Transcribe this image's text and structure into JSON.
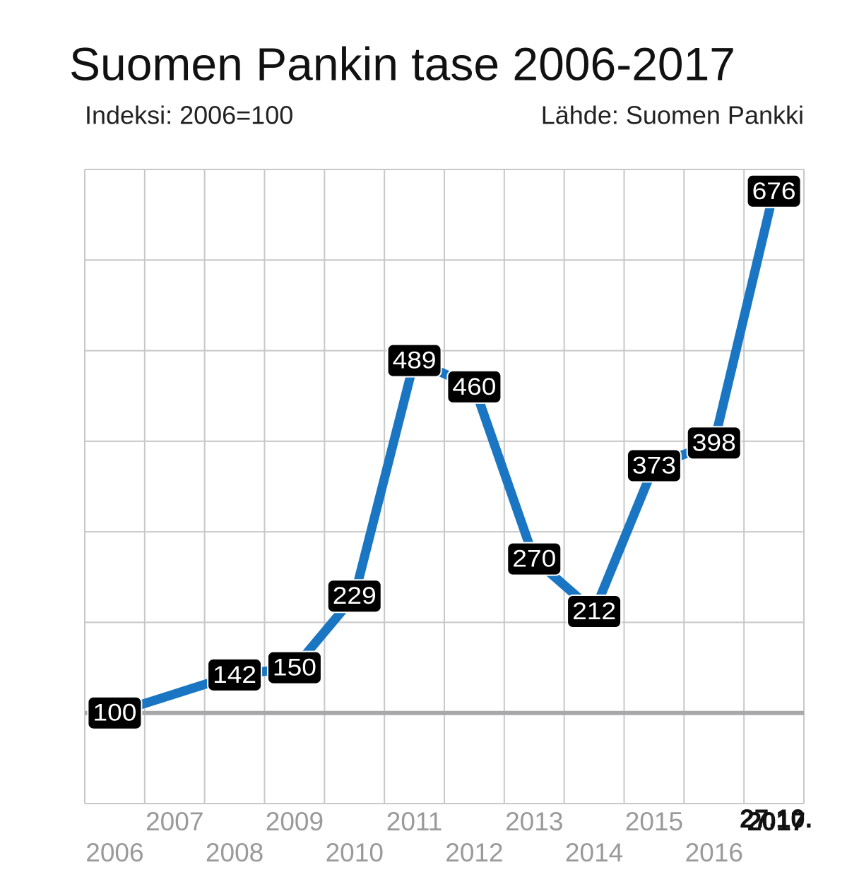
{
  "chart_data": {
    "type": "line",
    "title": "Suomen Pankin tase 2006-2017",
    "subtitle": "Indeksi: 2006=100",
    "source": "Lähde: Suomen Pankki",
    "annotation": "27.10.",
    "categories": [
      "2006",
      "2007",
      "2008",
      "2009",
      "2010",
      "2011",
      "2012",
      "2013",
      "2014",
      "2015",
      "2016",
      "2017"
    ],
    "series": [
      {
        "name": "Tase",
        "color": "#1a76c2",
        "values": [
          100,
          121,
          142,
          150,
          229,
          489,
          460,
          270,
          212,
          373,
          398,
          676
        ],
        "value_labels": [
          "100",
          null,
          "142",
          "150",
          "229",
          "489",
          "460",
          "270",
          "212",
          "373",
          "398",
          "676"
        ]
      }
    ],
    "ylim": [
      0,
      700
    ],
    "yticks": [
      0,
      100,
      200,
      300,
      400,
      500,
      600,
      700
    ],
    "baseline": 100,
    "grid": true
  }
}
